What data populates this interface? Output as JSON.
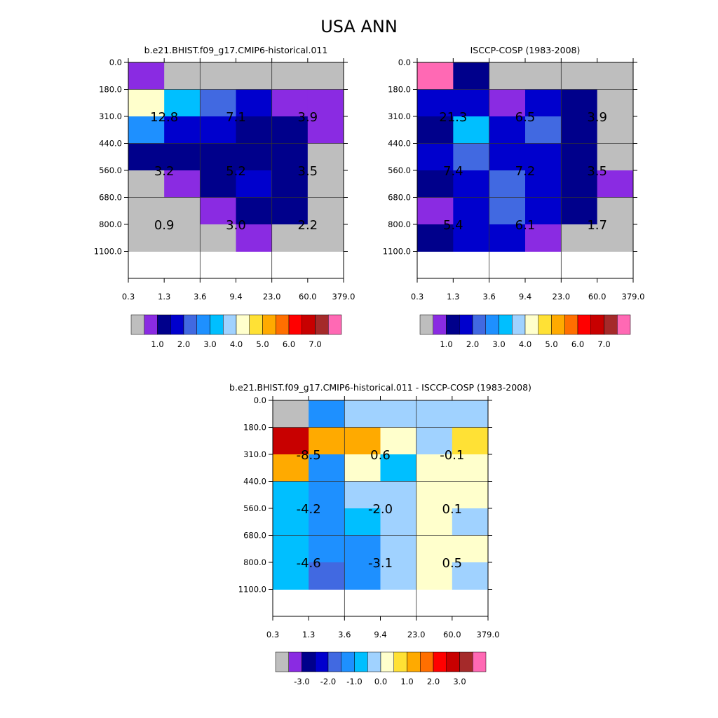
{
  "figure_title": "USA ANN",
  "palette": [
    "#bebebe",
    "#8a2be2",
    "#00008b",
    "#0000cd",
    "#4169e1",
    "#1e90ff",
    "#00bfff",
    "#a0d2ff",
    "#ffffcc",
    "#ffe135",
    "#ffaa00",
    "#ff6f00",
    "#ff0000",
    "#c80000",
    "#a52a2a",
    "#ff69b4"
  ],
  "chart_data": [
    {
      "type": "heatmap",
      "title": "b.e21.BHIST.f09_g17.CMIP6-historical.011",
      "x_ticks": [
        "0.3",
        "1.3",
        "3.6",
        "9.4",
        "23.0",
        "60.0",
        "379.0"
      ],
      "y_ticks": [
        "0.0",
        "180.0",
        "310.0",
        "440.0",
        "560.0",
        "680.0",
        "800.0",
        "1100.0"
      ],
      "cell_color_index": [
        [
          1,
          0,
          0,
          0,
          0,
          0
        ],
        [
          8,
          6,
          4,
          3,
          1,
          1
        ],
        [
          5,
          3,
          3,
          2,
          2,
          1
        ],
        [
          2,
          2,
          2,
          2,
          2,
          0
        ],
        [
          0,
          1,
          2,
          3,
          2,
          0
        ],
        [
          0,
          0,
          1,
          2,
          2,
          0
        ],
        [
          0,
          0,
          0,
          1,
          0,
          0
        ]
      ],
      "block_values": [
        [
          "12.8",
          "7.1",
          "3.9"
        ],
        [
          "3.2",
          "5.2",
          "3.5"
        ],
        [
          "0.9",
          "3.0",
          "2.2"
        ]
      ],
      "colorbar": {
        "box_colors": [
          0,
          1,
          2,
          3,
          4,
          5,
          6,
          7,
          8,
          9,
          10,
          11,
          12,
          13,
          14,
          15
        ],
        "labels": [
          "1.0",
          "2.0",
          "3.0",
          "4.0",
          "5.0",
          "6.0",
          "7.0"
        ]
      }
    },
    {
      "type": "heatmap",
      "title": "ISCCP-COSP (1983-2008)",
      "x_ticks": [
        "0.3",
        "1.3",
        "3.6",
        "9.4",
        "23.0",
        "60.0",
        "379.0"
      ],
      "y_ticks": [
        "0.0",
        "180.0",
        "310.0",
        "440.0",
        "560.0",
        "680.0",
        "800.0",
        "1100.0"
      ],
      "cell_color_index": [
        [
          15,
          2,
          0,
          0,
          0,
          0
        ],
        [
          3,
          3,
          1,
          3,
          2,
          0
        ],
        [
          2,
          6,
          3,
          4,
          2,
          0
        ],
        [
          3,
          4,
          3,
          3,
          2,
          0
        ],
        [
          2,
          3,
          4,
          3,
          2,
          1
        ],
        [
          1,
          3,
          4,
          3,
          2,
          0
        ],
        [
          2,
          3,
          3,
          1,
          0,
          0
        ]
      ],
      "block_values": [
        [
          "21.3",
          "6.5",
          "3.9"
        ],
        [
          "7.4",
          "7.2",
          "3.5"
        ],
        [
          "5.4",
          "6.1",
          "1.7"
        ]
      ],
      "colorbar": {
        "box_colors": [
          0,
          1,
          2,
          3,
          4,
          5,
          6,
          7,
          8,
          9,
          10,
          11,
          12,
          13,
          14,
          15
        ],
        "labels": [
          "1.0",
          "2.0",
          "3.0",
          "4.0",
          "5.0",
          "6.0",
          "7.0"
        ]
      }
    },
    {
      "type": "heatmap",
      "title": "b.e21.BHIST.f09_g17.CMIP6-historical.011 - ISCCP-COSP (1983-2008)",
      "x_ticks": [
        "0.3",
        "1.3",
        "3.6",
        "9.4",
        "23.0",
        "60.0",
        "379.0"
      ],
      "y_ticks": [
        "0.0",
        "180.0",
        "310.0",
        "440.0",
        "560.0",
        "680.0",
        "800.0",
        "1100.0"
      ],
      "cell_color_index": [
        [
          0,
          5,
          7,
          7,
          7,
          7
        ],
        [
          13,
          10,
          10,
          8,
          7,
          9
        ],
        [
          10,
          5,
          8,
          6,
          8,
          8
        ],
        [
          6,
          5,
          7,
          7,
          8,
          8
        ],
        [
          6,
          5,
          6,
          7,
          8,
          7
        ],
        [
          6,
          5,
          5,
          7,
          8,
          8
        ],
        [
          6,
          4,
          5,
          7,
          8,
          7
        ]
      ],
      "block_values": [
        [
          "-8.5",
          "0.6",
          "-0.1"
        ],
        [
          "-4.2",
          "-2.0",
          "0.1"
        ],
        [
          "-4.6",
          "-3.1",
          "0.5"
        ]
      ],
      "colorbar": {
        "box_colors": [
          0,
          1,
          2,
          3,
          4,
          5,
          6,
          7,
          8,
          9,
          10,
          11,
          12,
          13,
          14,
          15
        ],
        "labels": [
          "-3.0",
          "-2.0",
          "-1.0",
          "0.0",
          "1.0",
          "2.0",
          "3.0"
        ]
      }
    }
  ]
}
